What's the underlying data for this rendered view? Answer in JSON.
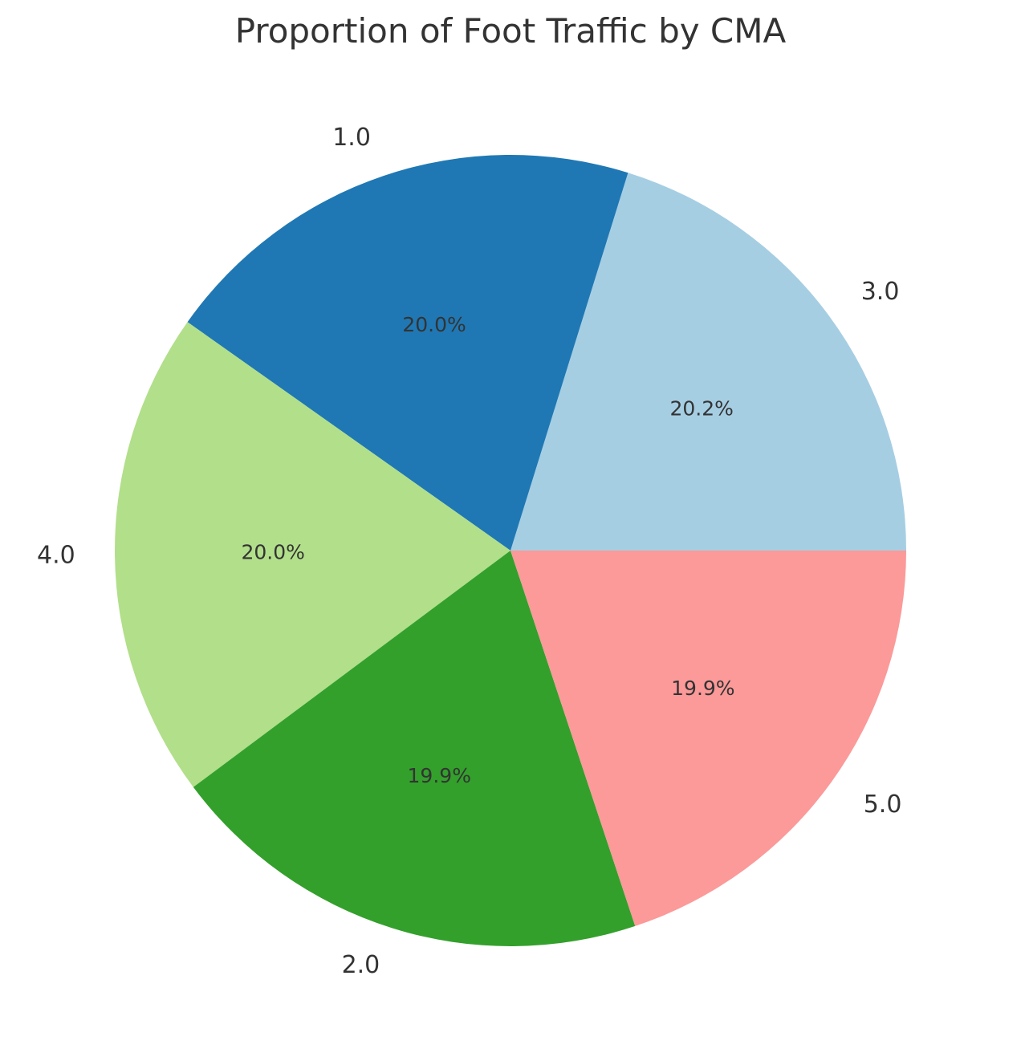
{
  "chart_data": {
    "type": "pie",
    "title": "Proportion of Foot Traffic by CMA",
    "start_angle_deg": 0,
    "direction": "counterclockwise",
    "slices": [
      {
        "label": "3.0",
        "percent": 20.2,
        "pct_label": "20.2%",
        "color": "#a6cee3"
      },
      {
        "label": "1.0",
        "percent": 20.0,
        "pct_label": "20.0%",
        "color": "#1f78b4"
      },
      {
        "label": "4.0",
        "percent": 20.0,
        "pct_label": "20.0%",
        "color": "#b2df8a"
      },
      {
        "label": "2.0",
        "percent": 19.9,
        "pct_label": "19.9%",
        "color": "#33a02c"
      },
      {
        "label": "5.0",
        "percent": 19.9,
        "pct_label": "19.9%",
        "color": "#fb9a99"
      }
    ]
  },
  "style": {
    "text_color": "#333333",
    "background": "#ffffff"
  }
}
